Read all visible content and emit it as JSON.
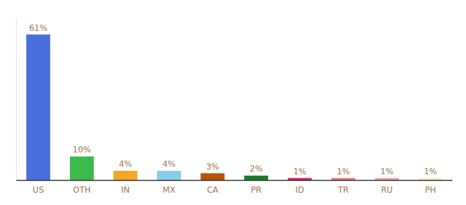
{
  "chart_data": {
    "type": "bar",
    "categories": [
      "US",
      "OTH",
      "IN",
      "MX",
      "CA",
      "PR",
      "ID",
      "TR",
      "RU",
      "PH"
    ],
    "values": [
      61,
      10,
      4,
      4,
      3,
      2,
      1,
      1,
      1,
      1
    ],
    "value_labels": [
      "61%",
      "10%",
      "4%",
      "4%",
      "3%",
      "2%",
      "1%",
      "1%",
      "1%",
      "1%"
    ],
    "colors": [
      "#4a6fdc",
      "#3dba4e",
      "#f5a623",
      "#87ceeb",
      "#b8520a",
      "#1a7a2e",
      "#e8185a",
      "#e87878",
      "#f0a0a0",
      "#f0f0c8"
    ],
    "ylim": [
      0,
      68
    ],
    "data_labels": true,
    "tick_labels": "x",
    "grid": false
  }
}
